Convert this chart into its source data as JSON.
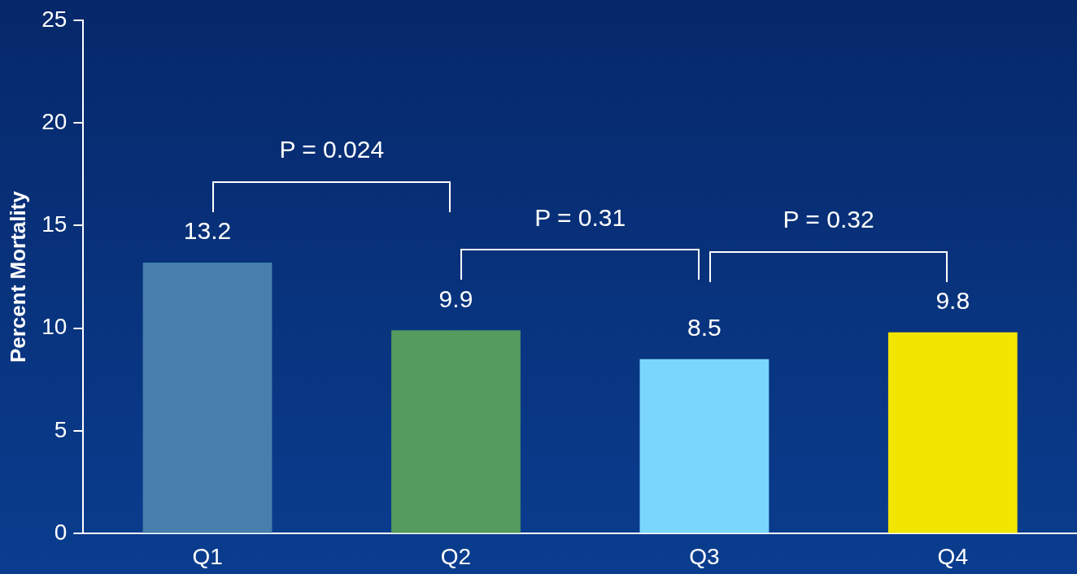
{
  "chart_data": {
    "type": "bar",
    "ylabel": "Percent Mortality",
    "categories": [
      "Q1",
      "Q2",
      "Q3",
      "Q4"
    ],
    "values": [
      13.2,
      9.9,
      8.5,
      9.8
    ],
    "colors": [
      "#467fad",
      "#559a5e",
      "#7bd6fd",
      "#f2e500"
    ],
    "ylim": [
      0,
      25
    ],
    "yticks": [
      0,
      5,
      10,
      15,
      20,
      25
    ],
    "data_labels": true,
    "grid": false,
    "legend": false,
    "annotations": [
      "P = 0.024",
      "P = 0.31",
      "P = 0.32"
    ]
  }
}
